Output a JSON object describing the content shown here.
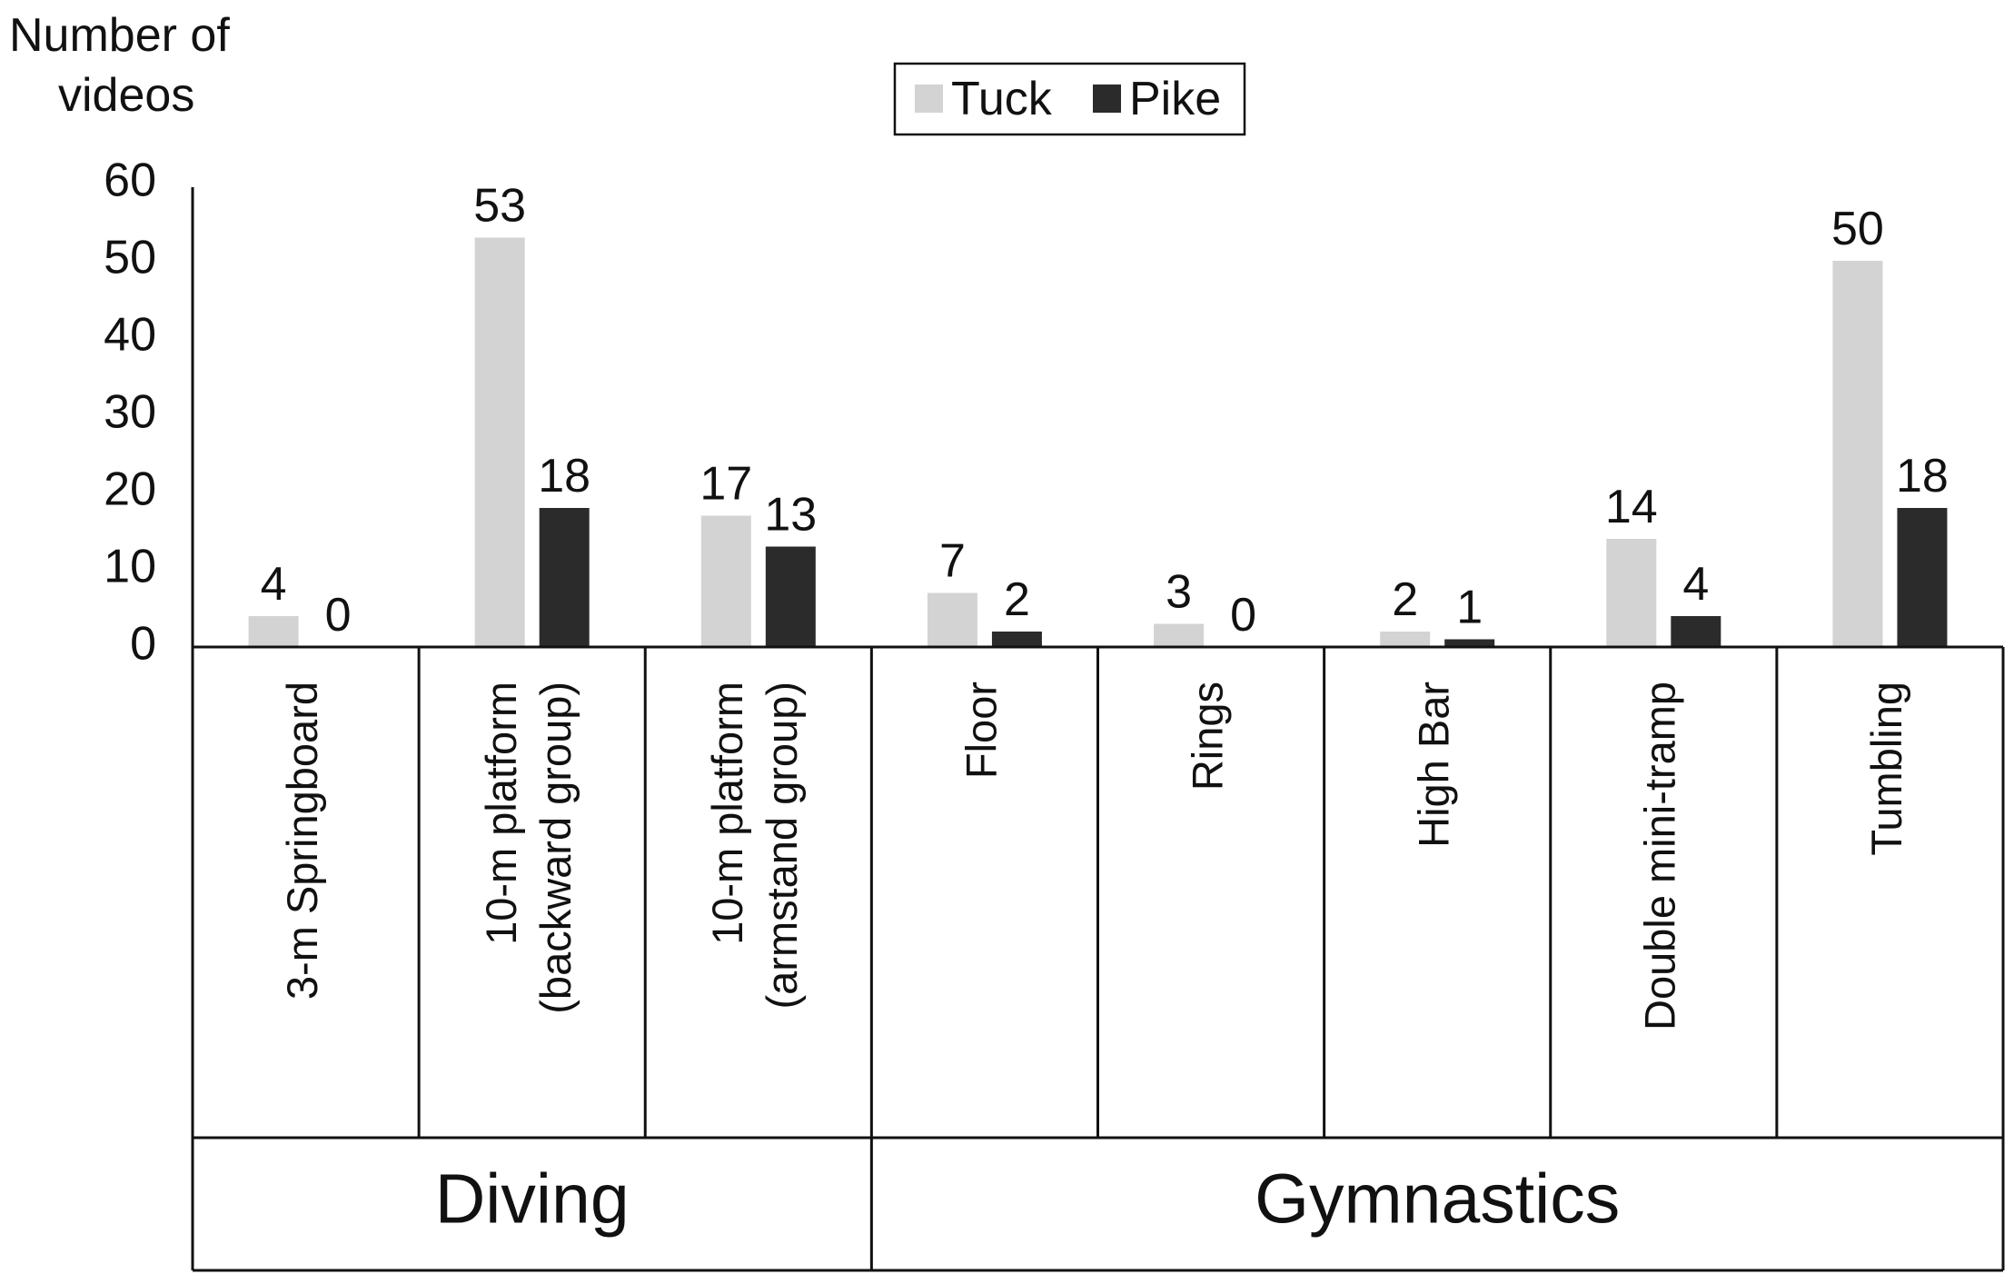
{
  "chart_data": {
    "type": "bar",
    "ylabel": [
      "Number of",
      "videos"
    ],
    "ylim": [
      0,
      60
    ],
    "yticks": [
      0,
      10,
      20,
      30,
      40,
      50,
      60
    ],
    "grid": false,
    "legend_position": "top-center",
    "categories": [
      [
        "3-m Springboard"
      ],
      [
        "10-m platform",
        "(backward group)"
      ],
      [
        "10-m platform",
        "(armstand group)"
      ],
      [
        "Floor"
      ],
      [
        "Rings"
      ],
      [
        "High Bar"
      ],
      [
        "Double mini-tramp"
      ],
      [
        "Tumbling"
      ]
    ],
    "groups": [
      {
        "name": "Diving",
        "span": [
          0,
          2
        ]
      },
      {
        "name": "Gymnastics",
        "span": [
          3,
          7
        ]
      }
    ],
    "series": [
      {
        "name": "Tuck",
        "color": "#d3d3d3",
        "values": [
          4,
          53,
          17,
          7,
          3,
          2,
          14,
          50
        ]
      },
      {
        "name": "Pike",
        "color": "#2b2b2b",
        "values": [
          0,
          18,
          13,
          2,
          0,
          1,
          4,
          18
        ]
      }
    ]
  }
}
